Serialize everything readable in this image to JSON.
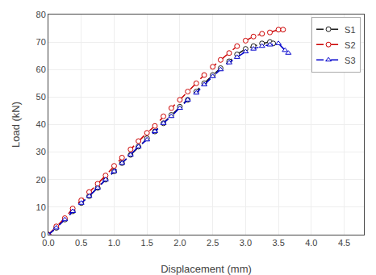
{
  "chart_data": {
    "type": "line",
    "xlabel": "Displacement (mm)",
    "ylabel": "Load (kN)",
    "xlim": [
      0.0,
      4.8
    ],
    "ylim": [
      0,
      80
    ],
    "xticks": [
      {
        "value": 0.0,
        "label": "0.0"
      },
      0.5,
      {
        "value": 1.0,
        "label": "1.0"
      },
      1.5,
      {
        "value": 2.0,
        "label": "2.0"
      },
      2.5,
      {
        "value": 3.0,
        "label": "3.0"
      },
      3.5,
      {
        "value": 4.0,
        "label": "4.0"
      },
      4.5
    ],
    "yticks": [
      0,
      10,
      20,
      30,
      40,
      50,
      60,
      70,
      80
    ],
    "grid": true,
    "legend": "upper right",
    "series": [
      {
        "name": "S1",
        "color": "#1a1a1a",
        "line_style": "dash",
        "marker": "circle",
        "x": [
          0.0,
          0.12,
          0.25,
          0.37,
          0.5,
          0.62,
          0.75,
          0.87,
          1.0,
          1.12,
          1.25,
          1.37,
          1.5,
          1.62,
          1.75,
          1.87,
          2.0,
          2.12,
          2.25,
          2.37,
          2.5,
          2.62,
          2.75,
          2.87,
          3.0,
          3.12,
          3.25,
          3.37,
          3.42
        ],
        "values": [
          0.0,
          2.5,
          5.5,
          8.5,
          11.5,
          14.0,
          17.0,
          20.0,
          23.0,
          26.0,
          29.0,
          32.0,
          35.0,
          37.5,
          40.5,
          43.5,
          46.5,
          49.0,
          52.0,
          55.0,
          58.0,
          60.5,
          63.0,
          65.5,
          67.5,
          68.5,
          69.5,
          70.0,
          69.5
        ]
      },
      {
        "name": "S2",
        "color": "#cc0000",
        "line_style": "dash",
        "marker": "circle",
        "x": [
          0.0,
          0.12,
          0.25,
          0.37,
          0.5,
          0.62,
          0.75,
          0.87,
          1.0,
          1.12,
          1.25,
          1.37,
          1.5,
          1.62,
          1.75,
          1.87,
          2.0,
          2.12,
          2.25,
          2.37,
          2.5,
          2.62,
          2.75,
          2.87,
          3.0,
          3.12,
          3.25,
          3.37,
          3.5,
          3.57
        ],
        "values": [
          0.0,
          3.0,
          6.0,
          9.5,
          12.5,
          15.5,
          18.5,
          21.5,
          25.0,
          28.0,
          31.0,
          34.0,
          37.0,
          39.5,
          43.0,
          46.0,
          49.0,
          52.0,
          55.0,
          58.0,
          61.0,
          63.5,
          66.0,
          68.5,
          70.5,
          72.0,
          73.0,
          73.5,
          74.5,
          74.5
        ]
      },
      {
        "name": "S3",
        "color": "#0000cc",
        "line_style": "dash",
        "marker": "triangle-up",
        "x": [
          0.0,
          0.12,
          0.25,
          0.37,
          0.5,
          0.62,
          0.75,
          0.87,
          1.0,
          1.12,
          1.25,
          1.37,
          1.5,
          1.62,
          1.75,
          1.87,
          2.0,
          2.12,
          2.25,
          2.37,
          2.5,
          2.62,
          2.75,
          2.87,
          3.0,
          3.12,
          3.25,
          3.37,
          3.5,
          3.6,
          3.65
        ],
        "values": [
          0.0,
          2.5,
          5.5,
          8.5,
          11.5,
          14.0,
          17.0,
          20.0,
          23.0,
          26.0,
          29.0,
          32.0,
          34.5,
          37.5,
          40.5,
          43.0,
          46.0,
          49.0,
          51.5,
          54.5,
          57.5,
          60.0,
          62.5,
          64.5,
          66.5,
          67.5,
          68.5,
          69.0,
          69.5,
          67.0,
          66.0
        ]
      }
    ]
  }
}
